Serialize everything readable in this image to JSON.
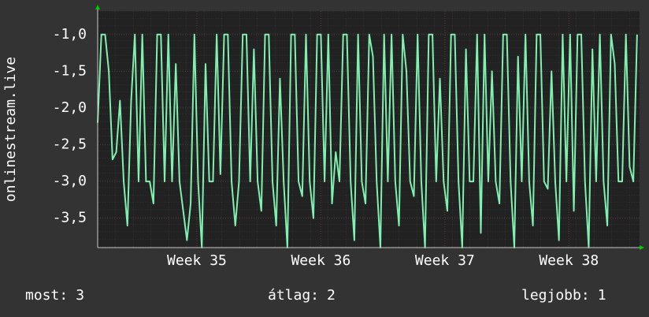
{
  "chart_data": {
    "type": "line",
    "y_label": "onlinestream.live",
    "xlim": [
      34.2,
      38.57
    ],
    "xticks": [
      {
        "value": 35,
        "label": "Week 35"
      },
      {
        "value": 36,
        "label": "Week 36"
      },
      {
        "value": 37,
        "label": "Week 37"
      },
      {
        "value": 38,
        "label": "Week 38"
      }
    ],
    "ylim": [
      -3.9,
      -0.68
    ],
    "yticks": [
      {
        "value": -1.0,
        "label": "-1,0"
      },
      {
        "value": -1.5,
        "label": "-1,5"
      },
      {
        "value": -2.0,
        "label": "-2,0"
      },
      {
        "value": -2.5,
        "label": "-2,5"
      },
      {
        "value": -3.0,
        "label": "-3,0"
      },
      {
        "value": -3.5,
        "label": "-3,5"
      }
    ],
    "grid": true,
    "series": [
      {
        "color": "#7ff0b0",
        "x": [
          34.2,
          34.23,
          34.26,
          34.29,
          34.32,
          34.35,
          34.38,
          34.41,
          34.44,
          34.47,
          34.5,
          34.53,
          34.56,
          34.59,
          34.62,
          34.65,
          34.68,
          34.71,
          34.74,
          34.77,
          34.8,
          34.83,
          34.86,
          34.89,
          34.92,
          34.95,
          34.98,
          35.01,
          35.04,
          35.07,
          35.1,
          35.13,
          35.16,
          35.19,
          35.22,
          35.25,
          35.28,
          35.31,
          35.34,
          35.37,
          35.4,
          35.43,
          35.46,
          35.49,
          35.52,
          35.55,
          35.58,
          35.61,
          35.64,
          35.67,
          35.7,
          35.73,
          35.76,
          35.79,
          35.82,
          35.85,
          35.88,
          35.91,
          35.94,
          35.97,
          36,
          36.03,
          36.06,
          36.09,
          36.12,
          36.15,
          36.18,
          36.21,
          36.24,
          36.27,
          36.3,
          36.33,
          36.36,
          36.39,
          36.42,
          36.45,
          36.48,
          36.51,
          36.54,
          36.57,
          36.6,
          36.63,
          36.66,
          36.69,
          36.72,
          36.75,
          36.78,
          36.81,
          36.84,
          36.87,
          36.9,
          36.93,
          36.96,
          36.99,
          37.02,
          37.05,
          37.08,
          37.11,
          37.14,
          37.17,
          37.2,
          37.23,
          37.26,
          37.29,
          37.32,
          37.35,
          37.38,
          37.41,
          37.44,
          37.47,
          37.5,
          37.53,
          37.56,
          37.59,
          37.62,
          37.65,
          37.68,
          37.71,
          37.74,
          37.77,
          37.8,
          37.83,
          37.86,
          37.89,
          37.92,
          37.95,
          37.98,
          38.01,
          38.04,
          38.07,
          38.1,
          38.13,
          38.16,
          38.19,
          38.22,
          38.25,
          38.28,
          38.31,
          38.34,
          38.37,
          38.4,
          38.43,
          38.46,
          38.49,
          38.52,
          38.55
        ],
        "values": [
          -2.2,
          -1,
          -1,
          -1.5,
          -2.7,
          -2.6,
          -1.9,
          -3,
          -3.6,
          -1.9,
          -1,
          -3,
          -1,
          -3,
          -3,
          -3.3,
          -1,
          -1,
          -3,
          -1,
          -3,
          -1.4,
          -3,
          -3.4,
          -3.8,
          -3.3,
          -1,
          -3,
          -3.9,
          -1.4,
          -3,
          -3,
          -1,
          -2.9,
          -1,
          -1,
          -3,
          -3.6,
          -3,
          -1,
          -1,
          -3,
          -1.2,
          -3,
          -3.4,
          -1,
          -1,
          -3,
          -3.6,
          -1.6,
          -3,
          -3.9,
          -1,
          -1,
          -3,
          -3.2,
          -1,
          -3,
          -3.5,
          -1,
          -1,
          -3,
          -1,
          -3.3,
          -2.6,
          -3,
          -1,
          -1,
          -3,
          -3.8,
          -1,
          -3,
          -3.3,
          -1,
          -1.3,
          -3,
          -3.9,
          -1,
          -3,
          -1,
          -3,
          -3.6,
          -1,
          -1.5,
          -3,
          -3.2,
          -1,
          -3,
          -3.9,
          -1,
          -1,
          -3,
          -1.6,
          -3,
          -3.4,
          -1,
          -1,
          -3,
          -3.9,
          -1.2,
          -3,
          -3,
          -1,
          -3.7,
          -1,
          -3,
          -1.5,
          -3,
          -3.3,
          -1,
          -1,
          -3,
          -3.9,
          -1.3,
          -3,
          -1,
          -3,
          -3.6,
          -1,
          -1,
          -3,
          -3.1,
          -1.5,
          -3,
          -3.8,
          -1,
          -3,
          -1,
          -3.4,
          -1,
          -1,
          -3,
          -3.9,
          -1.2,
          -3,
          -1,
          -3,
          -3.6,
          -1,
          -1.4,
          -3,
          -3,
          -1,
          -2.8,
          -3,
          -1
        ]
      }
    ],
    "footer": [
      {
        "label": "most:",
        "value": 3
      },
      {
        "label": "átlag:",
        "value": 2
      },
      {
        "label": "legjobb:",
        "value": 1
      }
    ]
  }
}
